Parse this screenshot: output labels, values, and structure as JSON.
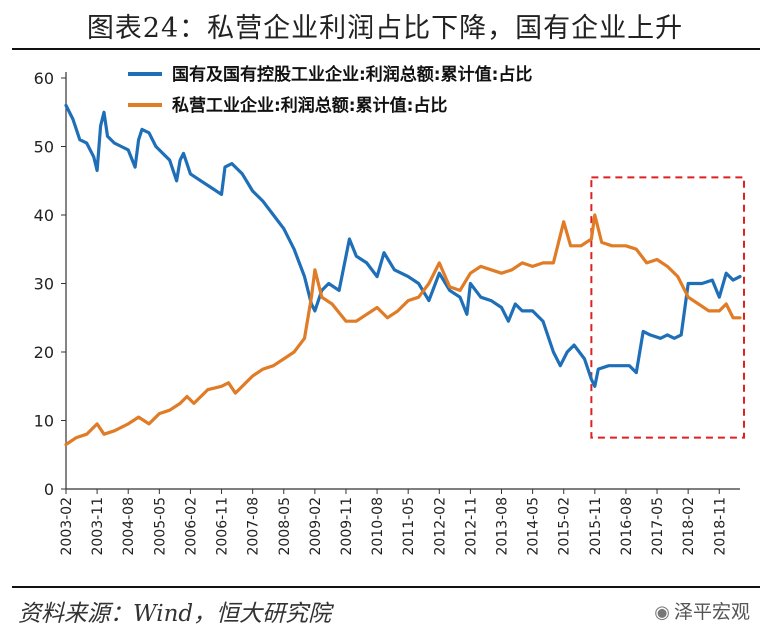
{
  "header": {
    "title": "图表24：私营企业利润占比下降，国有企业上升"
  },
  "footer": {
    "source": "资料来源：Wind，恒大研究院",
    "watermark": "泽平宏观",
    "watermark_icon": "wechat-icon"
  },
  "colors": {
    "state": "#1f6fb8",
    "private": "#e07b26",
    "highlight_box": "#e02020"
  },
  "chart_data": {
    "type": "line",
    "title": "",
    "ylim": [
      0,
      60
    ],
    "yticks": [
      0,
      10,
      20,
      30,
      40,
      50,
      60
    ],
    "x_categories": [
      "2003-02",
      "2003-11",
      "2004-08",
      "2005-05",
      "2006-02",
      "2006-11",
      "2007-08",
      "2008-05",
      "2009-02",
      "2009-11",
      "2010-08",
      "2011-05",
      "2012-02",
      "2012-11",
      "2013-08",
      "2014-05",
      "2015-02",
      "2015-11",
      "2016-08",
      "2017-05",
      "2018-02",
      "2018-11"
    ],
    "x_range": [
      "2003-02",
      "2019-05"
    ],
    "grid": false,
    "legend_position": "top",
    "highlight": {
      "x_start": "2015-10",
      "x_end": "2019-05",
      "y_start": 7.5,
      "y_end": 45.5,
      "style": "dashed"
    },
    "series": [
      {
        "name": "国有及国有控股工业企业:利润总额:累计值:占比",
        "color": "#1f6fb8",
        "points": [
          [
            "2003-02",
            56
          ],
          [
            "2003-04",
            54
          ],
          [
            "2003-06",
            51
          ],
          [
            "2003-08",
            50.5
          ],
          [
            "2003-10",
            48.5
          ],
          [
            "2003-11",
            46.5
          ],
          [
            "2003-12",
            53
          ],
          [
            "2004-01",
            55
          ],
          [
            "2004-02",
            51.5
          ],
          [
            "2004-04",
            50.5
          ],
          [
            "2004-06",
            50
          ],
          [
            "2004-08",
            49.5
          ],
          [
            "2004-10",
            47
          ],
          [
            "2004-11",
            51
          ],
          [
            "2004-12",
            52.5
          ],
          [
            "2005-02",
            52
          ],
          [
            "2005-04",
            50
          ],
          [
            "2005-06",
            49
          ],
          [
            "2005-08",
            48
          ],
          [
            "2005-10",
            45
          ],
          [
            "2005-11",
            48
          ],
          [
            "2005-12",
            49
          ],
          [
            "2006-02",
            46
          ],
          [
            "2006-05",
            45
          ],
          [
            "2006-08",
            44
          ],
          [
            "2006-11",
            43
          ],
          [
            "2006-12",
            47
          ],
          [
            "2007-02",
            47.5
          ],
          [
            "2007-05",
            46
          ],
          [
            "2007-08",
            43.5
          ],
          [
            "2007-11",
            42
          ],
          [
            "2008-02",
            40
          ],
          [
            "2008-05",
            38
          ],
          [
            "2008-08",
            35
          ],
          [
            "2008-11",
            31
          ],
          [
            "2009-01",
            27
          ],
          [
            "2009-02",
            26
          ],
          [
            "2009-04",
            29
          ],
          [
            "2009-06",
            30
          ],
          [
            "2009-09",
            29
          ],
          [
            "2009-11",
            34
          ],
          [
            "2009-12",
            36.5
          ],
          [
            "2010-02",
            34
          ],
          [
            "2010-05",
            33
          ],
          [
            "2010-08",
            31
          ],
          [
            "2010-10",
            34.5
          ],
          [
            "2011-01",
            32
          ],
          [
            "2011-05",
            31
          ],
          [
            "2011-08",
            30
          ],
          [
            "2011-11",
            27.5
          ],
          [
            "2012-02",
            31.5
          ],
          [
            "2012-05",
            29
          ],
          [
            "2012-08",
            28
          ],
          [
            "2012-10",
            25.5
          ],
          [
            "2012-11",
            30
          ],
          [
            "2013-02",
            28
          ],
          [
            "2013-05",
            27.5
          ],
          [
            "2013-08",
            26.5
          ],
          [
            "2013-10",
            24.5
          ],
          [
            "2013-12",
            27
          ],
          [
            "2014-02",
            26
          ],
          [
            "2014-05",
            26
          ],
          [
            "2014-08",
            24.5
          ],
          [
            "2014-11",
            20
          ],
          [
            "2015-01",
            18
          ],
          [
            "2015-03",
            20
          ],
          [
            "2015-05",
            21
          ],
          [
            "2015-08",
            19
          ],
          [
            "2015-10",
            16
          ],
          [
            "2015-11",
            15
          ],
          [
            "2015-12",
            17.5
          ],
          [
            "2016-03",
            18
          ],
          [
            "2016-06",
            18
          ],
          [
            "2016-09",
            18
          ],
          [
            "2016-11",
            17
          ],
          [
            "2017-01",
            23
          ],
          [
            "2017-03",
            22.5
          ],
          [
            "2017-06",
            22
          ],
          [
            "2017-08",
            22.5
          ],
          [
            "2017-10",
            22
          ],
          [
            "2017-12",
            22.5
          ],
          [
            "2018-02",
            30
          ],
          [
            "2018-04",
            30
          ],
          [
            "2018-06",
            30
          ],
          [
            "2018-09",
            30.5
          ],
          [
            "2018-11",
            28
          ],
          [
            "2019-01",
            31.5
          ],
          [
            "2019-03",
            30.5
          ],
          [
            "2019-05",
            31
          ]
        ]
      },
      {
        "name": "私营工业企业:利润总额:累计值:占比",
        "color": "#e07b26",
        "points": [
          [
            "2003-02",
            6.5
          ],
          [
            "2003-05",
            7.5
          ],
          [
            "2003-08",
            8
          ],
          [
            "2003-11",
            9.5
          ],
          [
            "2004-01",
            8
          ],
          [
            "2004-04",
            8.5
          ],
          [
            "2004-08",
            9.5
          ],
          [
            "2004-11",
            10.5
          ],
          [
            "2005-02",
            9.5
          ],
          [
            "2005-05",
            11
          ],
          [
            "2005-08",
            11.5
          ],
          [
            "2005-11",
            12.5
          ],
          [
            "2006-01",
            13.5
          ],
          [
            "2006-03",
            12.5
          ],
          [
            "2006-07",
            14.5
          ],
          [
            "2006-11",
            15
          ],
          [
            "2007-01",
            15.5
          ],
          [
            "2007-03",
            14
          ],
          [
            "2007-08",
            16.5
          ],
          [
            "2007-11",
            17.5
          ],
          [
            "2008-02",
            18
          ],
          [
            "2008-05",
            19
          ],
          [
            "2008-08",
            20
          ],
          [
            "2008-11",
            22
          ],
          [
            "2009-01",
            28
          ],
          [
            "2009-02",
            32
          ],
          [
            "2009-04",
            28
          ],
          [
            "2009-07",
            27
          ],
          [
            "2009-11",
            24.5
          ],
          [
            "2010-02",
            24.5
          ],
          [
            "2010-05",
            25.5
          ],
          [
            "2010-08",
            26.5
          ],
          [
            "2010-11",
            25
          ],
          [
            "2011-02",
            26
          ],
          [
            "2011-05",
            27.5
          ],
          [
            "2011-08",
            28
          ],
          [
            "2011-11",
            30
          ],
          [
            "2012-02",
            33
          ],
          [
            "2012-05",
            29.5
          ],
          [
            "2012-08",
            29
          ],
          [
            "2012-11",
            31.5
          ],
          [
            "2013-02",
            32.5
          ],
          [
            "2013-05",
            32
          ],
          [
            "2013-08",
            31.5
          ],
          [
            "2013-11",
            32
          ],
          [
            "2014-02",
            33
          ],
          [
            "2014-05",
            32.5
          ],
          [
            "2014-08",
            33
          ],
          [
            "2014-11",
            33
          ],
          [
            "2015-02",
            39
          ],
          [
            "2015-04",
            35.5
          ],
          [
            "2015-07",
            35.5
          ],
          [
            "2015-10",
            36.5
          ],
          [
            "2015-11",
            40
          ],
          [
            "2016-01",
            36
          ],
          [
            "2016-04",
            35.5
          ],
          [
            "2016-08",
            35.5
          ],
          [
            "2016-11",
            35
          ],
          [
            "2017-02",
            33
          ],
          [
            "2017-05",
            33.5
          ],
          [
            "2017-08",
            32.5
          ],
          [
            "2017-11",
            31
          ],
          [
            "2018-02",
            28
          ],
          [
            "2018-05",
            27
          ],
          [
            "2018-08",
            26
          ],
          [
            "2018-11",
            26
          ],
          [
            "2019-01",
            27
          ],
          [
            "2019-03",
            25
          ],
          [
            "2019-05",
            25
          ]
        ]
      }
    ]
  }
}
